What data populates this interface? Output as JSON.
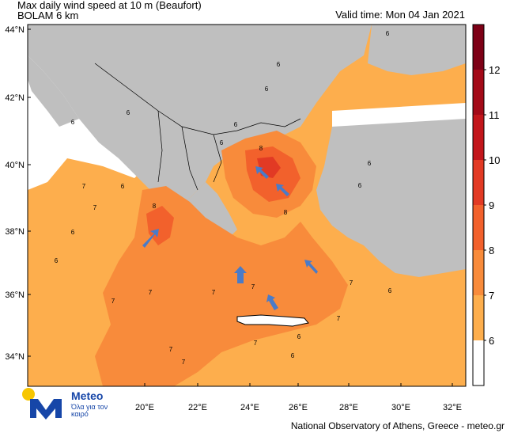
{
  "header": {
    "title_line1": "Max daily wind speed at 10 m (Beaufort)",
    "title_line2": "BOLAM 6 km",
    "valid_time": "Valid time: Mon 04 Jan 2021"
  },
  "axes": {
    "lat_labels": [
      "44°N",
      "42°N",
      "40°N",
      "38°N",
      "36°N",
      "34°N"
    ],
    "lon_labels": [
      "20°E",
      "22°E",
      "24°E",
      "26°E",
      "28°E",
      "30°E",
      "32°E"
    ]
  },
  "colorbar": {
    "labels": [
      "6",
      "7",
      "8",
      "9",
      "10",
      "11",
      "12"
    ],
    "colors": [
      "#ffffff",
      "#fdae4d",
      "#f88b3b",
      "#f2612c",
      "#e23a24",
      "#c2161b",
      "#a30a18",
      "#7d0016"
    ]
  },
  "contour_labels": [
    "6",
    "6",
    "6",
    "6",
    "6",
    "6",
    "6",
    "6",
    "6",
    "6",
    "6",
    "6",
    "6",
    "6",
    "7",
    "7",
    "7",
    "7",
    "7",
    "7",
    "7",
    "7",
    "7",
    "7",
    "7",
    "8",
    "8",
    "8",
    "6"
  ],
  "footer": {
    "credit": "National Observatory of Athens, Greece - meteo.gr"
  },
  "logo": {
    "brand": "Meteo",
    "tagline": "Όλα για τον καιρό"
  },
  "colors": {
    "land": "#bfbfbf",
    "sea_low": "#ffffff",
    "arrow": "#4a7bc8"
  }
}
